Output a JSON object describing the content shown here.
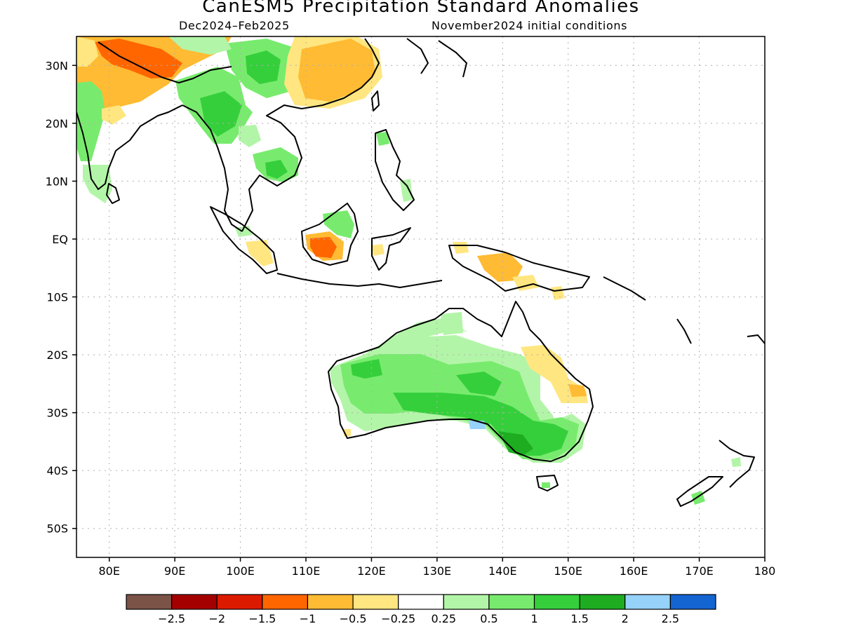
{
  "title": "CanESM5 Precipitation Standard Anomalies",
  "subtitle_left": "Dec2024–Feb2025",
  "subtitle_right": "November2024 initial conditions",
  "map": {
    "lon_range": [
      75,
      180
    ],
    "lat_range": [
      -55,
      35
    ],
    "lat_labels": [
      "30N",
      "20N",
      "10N",
      "EQ",
      "10S",
      "20S",
      "30S",
      "40S",
      "50S"
    ],
    "lat_values": [
      30,
      20,
      10,
      0,
      -10,
      -20,
      -30,
      -40,
      -50
    ],
    "lon_labels": [
      "80E",
      "90E",
      "100E",
      "110E",
      "120E",
      "130E",
      "140E",
      "150E",
      "160E",
      "170E",
      "180"
    ],
    "lon_values": [
      80,
      90,
      100,
      110,
      120,
      130,
      140,
      150,
      160,
      170,
      180
    ],
    "grid": true,
    "projection": "lat-lon"
  },
  "colorbar": {
    "colors": [
      "#7b5347",
      "#a50000",
      "#dc1a00",
      "#ff6600",
      "#ffbb33",
      "#ffe680",
      "#ffffff",
      "#b3f5a8",
      "#78eb6e",
      "#36cf3c",
      "#1ead21",
      "#96d2fa",
      "#1464d2"
    ],
    "labels": [
      "−2.5",
      "−2",
      "−1.5",
      "−1",
      "−0.5",
      "−0.25",
      "0.25",
      "0.5",
      "1",
      "1.5",
      "2",
      "2.5"
    ]
  }
}
